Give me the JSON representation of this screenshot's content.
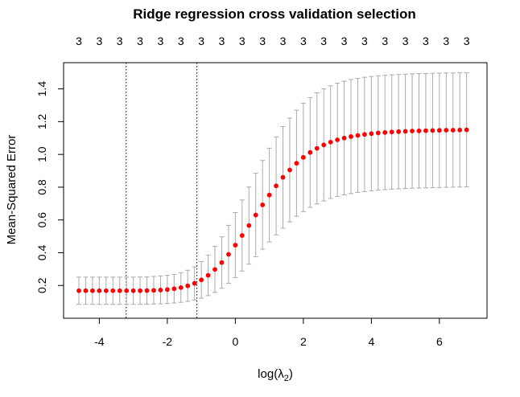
{
  "chart_data": {
    "type": "scatter",
    "title": "Ridge regression cross validation selection",
    "xlabel_prefix": "log(",
    "xlabel_symbol": "λ",
    "xlabel_subscript": "2",
    "xlabel_suffix": ")",
    "ylabel": "Mean-Squared Error",
    "xlim": [
      -5.05,
      7.4
    ],
    "ylim": [
      0.0,
      1.56
    ],
    "x_ticks": [
      -4,
      -2,
      0,
      2,
      4,
      6
    ],
    "y_ticks": [
      0.2,
      0.4,
      0.6,
      0.8,
      1.0,
      1.2,
      1.4
    ],
    "top_axis_labels": [
      "3",
      "3",
      "3",
      "3",
      "3",
      "3",
      "3",
      "3",
      "3",
      "3",
      "3",
      "3",
      "3",
      "3",
      "3",
      "3",
      "3",
      "3",
      "3",
      "3",
      "3",
      "3",
      "3",
      "3",
      "3",
      "3",
      "3",
      "3",
      "3",
      "3",
      "3",
      "3",
      "3",
      "3",
      "3",
      "3",
      "3",
      "3",
      "3",
      "3",
      "3",
      "3",
      "3",
      "3",
      "3",
      "3",
      "3",
      "3",
      "3",
      "3",
      "3",
      "3",
      "3",
      "3",
      "3",
      "3",
      "3",
      "3"
    ],
    "reference_lines_x": [
      -3.21,
      -1.13
    ],
    "point_color": "#ff0000",
    "errorbar_color": "#aaaaaa",
    "series": [
      {
        "x": [
          -4.6,
          -4.4,
          -4.2,
          -4.0,
          -3.8,
          -3.6,
          -3.4,
          -3.2,
          -3.0,
          -2.8,
          -2.6,
          -2.4,
          -2.2,
          -2.0,
          -1.8,
          -1.6,
          -1.4,
          -1.2,
          -1.0,
          -0.8,
          -0.6,
          -0.4,
          -0.2,
          0.0,
          0.2,
          0.4,
          0.6,
          0.8,
          1.0,
          1.2,
          1.4,
          1.6,
          1.8,
          2.0,
          2.2,
          2.4,
          2.6,
          2.8,
          3.0,
          3.2,
          3.4,
          3.6,
          3.8,
          4.0,
          4.2,
          4.4,
          4.6,
          4.8,
          5.0,
          5.2,
          5.4,
          5.6,
          5.8,
          6.0,
          6.2,
          6.4,
          6.6,
          6.8
        ],
        "y": [
          0.168,
          0.168,
          0.168,
          0.168,
          0.168,
          0.168,
          0.168,
          0.168,
          0.168,
          0.168,
          0.169,
          0.17,
          0.172,
          0.175,
          0.18,
          0.187,
          0.198,
          0.213,
          0.234,
          0.262,
          0.298,
          0.34,
          0.39,
          0.446,
          0.505,
          0.566,
          0.63,
          0.692,
          0.752,
          0.808,
          0.86,
          0.905,
          0.946,
          0.982,
          1.012,
          1.037,
          1.058,
          1.075,
          1.089,
          1.1,
          1.109,
          1.116,
          1.122,
          1.127,
          1.131,
          1.134,
          1.137,
          1.139,
          1.141,
          1.143,
          1.144,
          1.145,
          1.146,
          1.147,
          1.148,
          1.148,
          1.149,
          1.15
        ],
        "lower": [
          0.085,
          0.085,
          0.085,
          0.085,
          0.085,
          0.085,
          0.085,
          0.085,
          0.085,
          0.085,
          0.086,
          0.087,
          0.088,
          0.09,
          0.093,
          0.097,
          0.103,
          0.111,
          0.122,
          0.138,
          0.158,
          0.183,
          0.213,
          0.248,
          0.288,
          0.33,
          0.375,
          0.421,
          0.466,
          0.509,
          0.55,
          0.588,
          0.622,
          0.651,
          0.677,
          0.698,
          0.716,
          0.731,
          0.743,
          0.753,
          0.761,
          0.768,
          0.773,
          0.778,
          0.782,
          0.785,
          0.788,
          0.79,
          0.792,
          0.794,
          0.795,
          0.796,
          0.797,
          0.798,
          0.799,
          0.8,
          0.801,
          0.802
        ],
        "upper": [
          0.251,
          0.251,
          0.251,
          0.251,
          0.251,
          0.251,
          0.251,
          0.251,
          0.251,
          0.252,
          0.253,
          0.255,
          0.258,
          0.262,
          0.268,
          0.278,
          0.293,
          0.314,
          0.346,
          0.386,
          0.438,
          0.497,
          0.567,
          0.645,
          0.722,
          0.801,
          0.885,
          0.963,
          1.038,
          1.107,
          1.17,
          1.222,
          1.27,
          1.313,
          1.347,
          1.376,
          1.4,
          1.419,
          1.435,
          1.447,
          1.457,
          1.464,
          1.471,
          1.476,
          1.48,
          1.483,
          1.486,
          1.488,
          1.49,
          1.492,
          1.493,
          1.494,
          1.495,
          1.496,
          1.497,
          1.497,
          1.498,
          1.498
        ]
      }
    ]
  }
}
